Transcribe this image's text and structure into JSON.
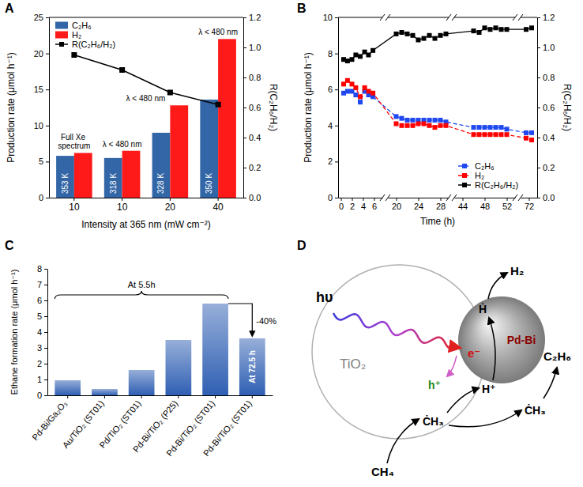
{
  "panel_labels": [
    "A",
    "B",
    "C",
    "D"
  ],
  "chart_data": [
    {
      "type": "bar",
      "x_label": "Intensity at 365 nm (mW cm⁻²)",
      "y_label": "Production rate (μmol h⁻¹)",
      "y2_label": "R(C₂H₆/H₂)",
      "categories": [
        "10",
        "10",
        "20",
        "40"
      ],
      "series": [
        {
          "name": "C₂H₆",
          "color": "#3366a6",
          "values": [
            5.8,
            5.5,
            9,
            13.6
          ]
        },
        {
          "name": "H₂",
          "color": "#ff1a1a",
          "values": [
            6.2,
            6.5,
            12.8,
            22
          ]
        },
        {
          "name": "R(C₂H₆/H₂)",
          "type": "line",
          "axis": "y2",
          "color": "#000000",
          "marker": "square",
          "line_style": "solid",
          "values": [
            0.95,
            0.85,
            0.7,
            0.62
          ]
        }
      ],
      "bar_labels": [
        "353 K",
        "318 K",
        "328 K",
        "350 K"
      ],
      "annotations": [
        "Full Xe spectrum",
        "λ < 480 nm",
        "λ < 480 nm",
        "λ < 480 nm"
      ],
      "ylim": [
        0,
        25
      ],
      "yticks": [
        0,
        5,
        10,
        15,
        20,
        25
      ],
      "y2lim": [
        0,
        1.2
      ],
      "y2ticks": [
        {
          "value": 0,
          "label": "0.0"
        },
        0.2,
        0.4,
        0.6,
        0.8,
        {
          "value": 1,
          "label": "1.0"
        },
        1.2
      ],
      "legend": "upper left"
    },
    {
      "type": "line",
      "x_label": "Time (h)",
      "y_label": "Production rate (μmol h⁻¹)",
      "y2_label": "R(C₂H₆/H₂)",
      "x": [
        0.5,
        1.2,
        2,
        2.7,
        3.5,
        4.3,
        5,
        5.8,
        20,
        21,
        22,
        23,
        24,
        25,
        26,
        27,
        28,
        29,
        46,
        47,
        48,
        49,
        50,
        51,
        52,
        71.5,
        72.5
      ],
      "series": [
        {
          "name": "C₂H₆",
          "color": "#2048f0",
          "marker": "square",
          "line_style": "dashed",
          "values": [
            5.8,
            5.9,
            5.9,
            5.7,
            5.3,
            5.9,
            5.7,
            5.6,
            4.5,
            4.4,
            4.3,
            4.3,
            4.3,
            4.3,
            4.3,
            4.3,
            4.3,
            4.2,
            3.9,
            3.9,
            3.9,
            3.9,
            3.9,
            3.9,
            3.8,
            3.6,
            3.6
          ]
        },
        {
          "name": "H₂",
          "color": "#ff0000",
          "marker": "square",
          "line_style": "dashed",
          "values": [
            6.3,
            6.5,
            6.3,
            6.1,
            5.6,
            6.1,
            5.9,
            5.8,
            4.1,
            4.0,
            4.0,
            4.0,
            4.1,
            4.1,
            4.0,
            3.9,
            4.0,
            4.0,
            3.5,
            3.5,
            3.5,
            3.5,
            3.5,
            3.5,
            3.5,
            3.3,
            3.2
          ]
        },
        {
          "name": "R(C₂H₆/H₂)",
          "axis": "y2",
          "color": "#000000",
          "marker": "square",
          "line_style": "solid",
          "values": [
            0.92,
            0.91,
            0.92,
            0.95,
            0.94,
            0.97,
            0.95,
            0.98,
            1.09,
            1.1,
            1.09,
            1.08,
            1.05,
            1.06,
            1.08,
            1.06,
            1.08,
            1.09,
            1.11,
            1.1,
            1.13,
            1.12,
            1.13,
            1.12,
            1.12,
            1.12,
            1.13
          ]
        }
      ],
      "xlim": [
        -0.5,
        73.5
      ],
      "xticks": [
        0,
        2,
        4,
        6,
        20,
        24,
        28,
        44,
        48,
        52,
        72
      ],
      "ylim": [
        0,
        10
      ],
      "yticks": [
        0,
        2,
        4,
        6,
        8,
        10
      ],
      "y2lim": [
        0,
        1.2
      ],
      "y2ticks": [
        {
          "value": 0,
          "label": "0.0"
        },
        0.2,
        0.4,
        0.6,
        0.8,
        {
          "value": 1,
          "label": "1.0"
        },
        1.2
      ],
      "legend": "lower right"
    },
    {
      "type": "bar",
      "y_label": "Ethane formation rate (μmol h⁻¹)",
      "categories": [
        "Pd-Bi/Ga₂O₃",
        "Au/TiO₂ (ST01)",
        "Pd/TiO₂ (ST01)",
        "Pd-Bi/TiO₂ (P25)",
        "Pd-Bi/TiO₂ (ST01)",
        "Pd-Bi/TiO₂ (ST01)"
      ],
      "values": [
        0.95,
        0.4,
        1.6,
        3.5,
        5.8,
        3.6
      ],
      "color": "#2f5fb3",
      "annotations": [
        "At 5.5h",
        "At 72.5 h",
        "-40%"
      ],
      "ylim": [
        0,
        8
      ],
      "yticks": [
        0,
        1,
        2,
        3,
        4,
        5,
        6,
        7,
        8
      ]
    }
  ],
  "diagram": {
    "labels": {
      "light": "hυ",
      "support": "TiO₂",
      "cocatalyst": "Pd-Bi",
      "electron": "e⁻",
      "hole": "h⁺",
      "hydrogen": "H₂",
      "ethane": "C₂H₆",
      "methane": "CH₄",
      "proton": "H⁺",
      "h_radical": "Ḣ",
      "methyl_surface": "ĊH₃",
      "methyl_metal": "ĊH₃"
    }
  }
}
